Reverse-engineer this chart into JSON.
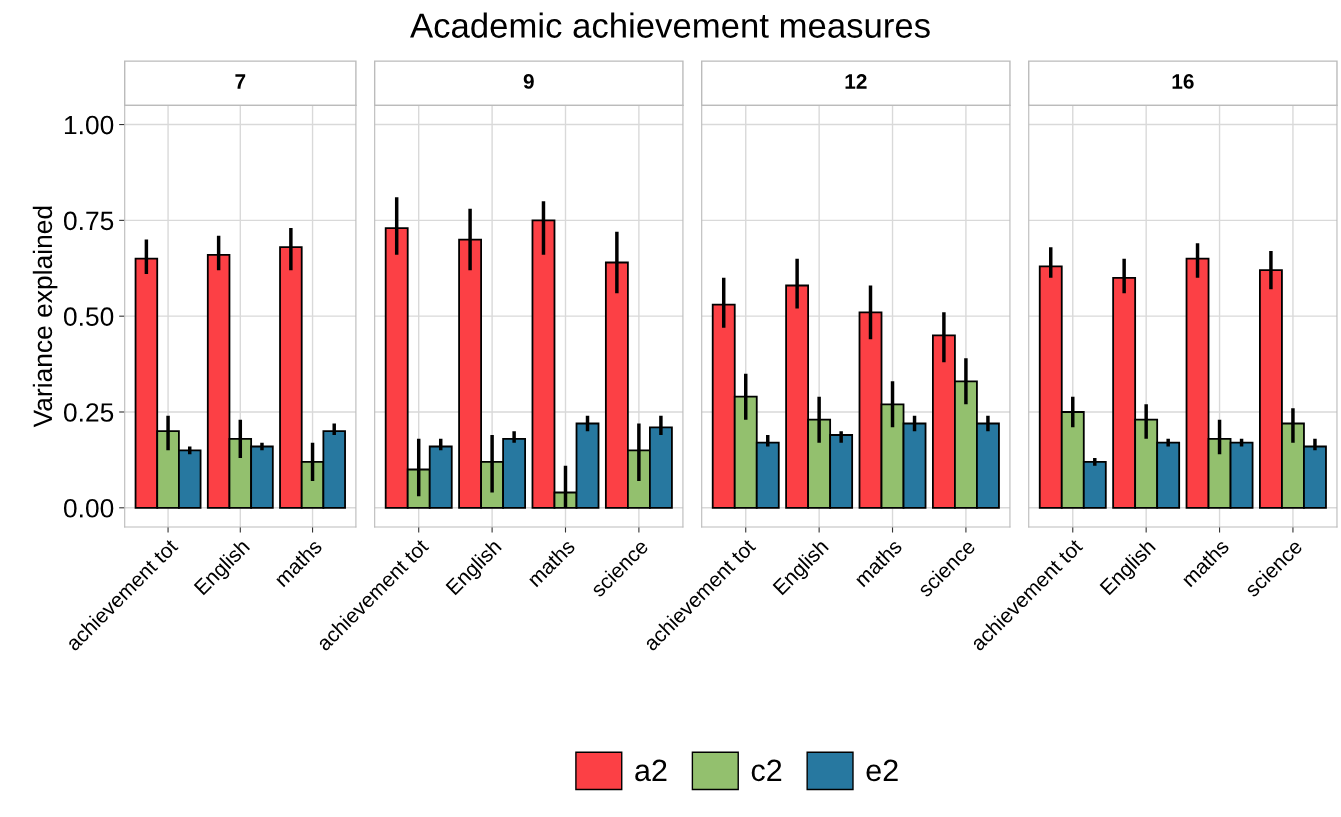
{
  "chart_data": [
    {
      "type": "bar",
      "title": "7",
      "ylabel": "Variance explained",
      "annotations": [
        "Academic achievement measures"
      ],
      "legend": "bottom",
      "grid": true,
      "categories": [
        "achievement tot",
        "English",
        "maths"
      ],
      "ylim": [
        -0.05,
        1.05
      ],
      "yticks": [
        {
          "value": 0,
          "label": "0.00"
        },
        {
          "value": 0.25,
          "label": "0.25"
        },
        {
          "value": 0.5,
          "label": "0.50"
        },
        {
          "value": 0.75,
          "label": "0.75"
        },
        {
          "value": 1,
          "label": "1.00"
        }
      ],
      "series": [
        {
          "name": "a2",
          "color": "#fc4045",
          "values": [
            0.65,
            0.66,
            0.68
          ],
          "errors": [
            [
              0.61,
              0.7
            ],
            [
              0.62,
              0.71
            ],
            [
              0.62,
              0.73
            ]
          ]
        },
        {
          "name": "c2",
          "color": "#93c06e",
          "values": [
            0.2,
            0.18,
            0.12
          ],
          "errors": [
            [
              0.15,
              0.24
            ],
            [
              0.13,
              0.23
            ],
            [
              0.07,
              0.17
            ]
          ]
        },
        {
          "name": "e2",
          "color": "#2778a0",
          "values": [
            0.15,
            0.16,
            0.2
          ],
          "errors": [
            [
              0.14,
              0.16
            ],
            [
              0.15,
              0.17
            ],
            [
              0.19,
              0.22
            ]
          ]
        }
      ]
    },
    {
      "type": "bar",
      "title": "9",
      "grid": true,
      "tick_labels": "x",
      "categories": [
        "achievement tot",
        "English",
        "maths",
        "science"
      ],
      "ylim": [
        -0.05,
        1.05
      ],
      "yticks": [
        {
          "value": 0,
          "label": null
        },
        {
          "value": 0.25,
          "label": null
        },
        {
          "value": 0.5,
          "label": null
        },
        {
          "value": 0.75,
          "label": null
        },
        {
          "value": 1,
          "label": null
        }
      ],
      "series": [
        {
          "color": "#fc4045",
          "values": [
            0.73,
            0.7,
            0.75,
            0.64
          ],
          "errors": [
            [
              0.66,
              0.81
            ],
            [
              0.62,
              0.78
            ],
            [
              0.66,
              0.8
            ],
            [
              0.56,
              0.72
            ]
          ]
        },
        {
          "color": "#93c06e",
          "values": [
            0.1,
            0.12,
            0.04,
            0.15
          ],
          "errors": [
            [
              0.03,
              0.18
            ],
            [
              0.04,
              0.19
            ],
            [
              0.0,
              0.11
            ],
            [
              0.07,
              0.22
            ]
          ]
        },
        {
          "color": "#2778a0",
          "values": [
            0.16,
            0.18,
            0.22,
            0.21
          ],
          "errors": [
            [
              0.15,
              0.18
            ],
            [
              0.17,
              0.2
            ],
            [
              0.2,
              0.24
            ],
            [
              0.19,
              0.24
            ]
          ]
        }
      ]
    },
    {
      "type": "bar",
      "title": "12",
      "grid": true,
      "tick_labels": "x",
      "categories": [
        "achievement tot",
        "English",
        "maths",
        "science"
      ],
      "ylim": [
        -0.05,
        1.05
      ],
      "yticks": [
        {
          "value": 0,
          "label": null
        },
        {
          "value": 0.25,
          "label": null
        },
        {
          "value": 0.5,
          "label": null
        },
        {
          "value": 0.75,
          "label": null
        },
        {
          "value": 1,
          "label": null
        }
      ],
      "series": [
        {
          "color": "#fc4045",
          "values": [
            0.53,
            0.58,
            0.51,
            0.45
          ],
          "errors": [
            [
              0.47,
              0.6
            ],
            [
              0.52,
              0.65
            ],
            [
              0.44,
              0.58
            ],
            [
              0.38,
              0.51
            ]
          ]
        },
        {
          "color": "#93c06e",
          "values": [
            0.29,
            0.23,
            0.27,
            0.33
          ],
          "errors": [
            [
              0.23,
              0.35
            ],
            [
              0.17,
              0.29
            ],
            [
              0.21,
              0.33
            ],
            [
              0.27,
              0.39
            ]
          ]
        },
        {
          "color": "#2778a0",
          "values": [
            0.17,
            0.19,
            0.22,
            0.22
          ],
          "errors": [
            [
              0.16,
              0.19
            ],
            [
              0.17,
              0.2
            ],
            [
              0.2,
              0.24
            ],
            [
              0.2,
              0.24
            ]
          ]
        }
      ]
    },
    {
      "type": "bar",
      "title": "16",
      "grid": true,
      "tick_labels": "x",
      "categories": [
        "achievement tot",
        "English",
        "maths",
        "science"
      ],
      "ylim": [
        -0.05,
        1.05
      ],
      "yticks": [
        {
          "value": 0,
          "label": null
        },
        {
          "value": 0.25,
          "label": null
        },
        {
          "value": 0.5,
          "label": null
        },
        {
          "value": 0.75,
          "label": null
        },
        {
          "value": 1,
          "label": null
        }
      ],
      "series": [
        {
          "color": "#fc4045",
          "values": [
            0.63,
            0.6,
            0.65,
            0.62
          ],
          "errors": [
            [
              0.6,
              0.68
            ],
            [
              0.56,
              0.65
            ],
            [
              0.6,
              0.69
            ],
            [
              0.57,
              0.67
            ]
          ]
        },
        {
          "color": "#93c06e",
          "values": [
            0.25,
            0.23,
            0.18,
            0.22
          ],
          "errors": [
            [
              0.21,
              0.29
            ],
            [
              0.18,
              0.27
            ],
            [
              0.14,
              0.23
            ],
            [
              0.17,
              0.26
            ]
          ]
        },
        {
          "color": "#2778a0",
          "values": [
            0.12,
            0.17,
            0.17,
            0.16
          ],
          "errors": [
            [
              0.11,
              0.13
            ],
            [
              0.16,
              0.18
            ],
            [
              0.16,
              0.18
            ],
            [
              0.15,
              0.18
            ]
          ]
        }
      ]
    }
  ]
}
